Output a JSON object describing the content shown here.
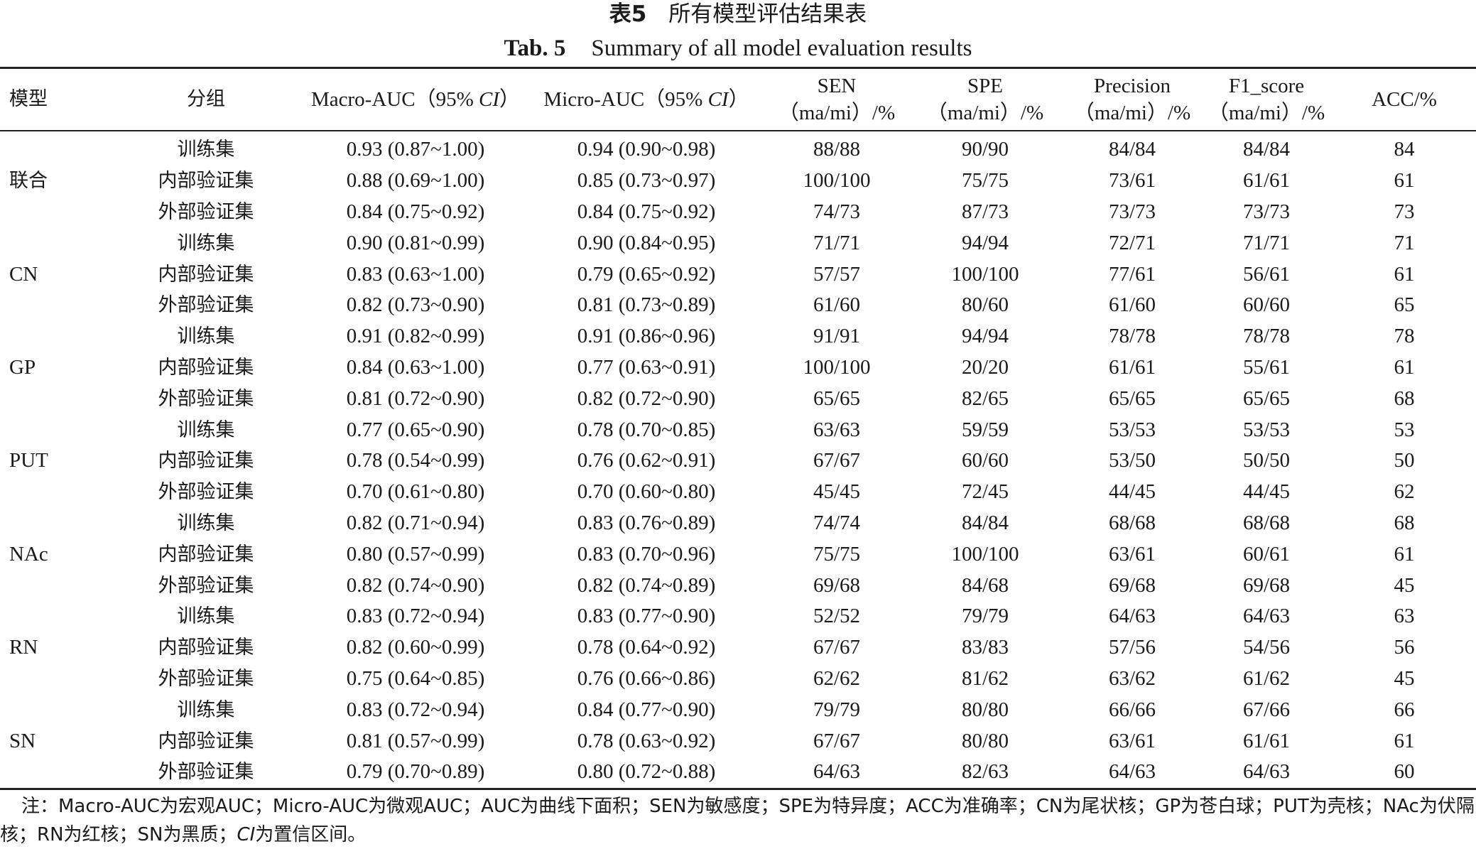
{
  "title": {
    "cn_label": "表5",
    "cn_text": "所有模型评估结果表",
    "en_label": "Tab. 5",
    "en_text": "Summary of all model evaluation results"
  },
  "header": {
    "model": "模型",
    "group": "分组",
    "macro_prefix": "Macro-AUC（95% ",
    "macro_ci": "CI",
    "macro_suffix": "）",
    "micro_prefix": "Micro-AUC（95% ",
    "micro_ci": "CI",
    "micro_suffix": "）",
    "sen": "SEN",
    "spe": "SPE",
    "precision": "Precision",
    "f1": "F1_score",
    "unit": "（ma/mi）/%",
    "acc": "ACC/%"
  },
  "groups": [
    {
      "model": "联合",
      "rows": [
        [
          "训练集",
          "0.93 (0.87~1.00)",
          "0.94 (0.90~0.98)",
          "88/88",
          "90/90",
          "84/84",
          "84/84",
          "84"
        ],
        [
          "内部验证集",
          "0.88 (0.69~1.00)",
          "0.85 (0.73~0.97)",
          "100/100",
          "75/75",
          "73/61",
          "61/61",
          "61"
        ],
        [
          "外部验证集",
          "0.84 (0.75~0.92)",
          "0.84 (0.75~0.92)",
          "74/73",
          "87/73",
          "73/73",
          "73/73",
          "73"
        ]
      ]
    },
    {
      "model": "CN",
      "rows": [
        [
          "训练集",
          "0.90 (0.81~0.99)",
          "0.90 (0.84~0.95)",
          "71/71",
          "94/94",
          "72/71",
          "71/71",
          "71"
        ],
        [
          "内部验证集",
          "0.83 (0.63~1.00)",
          "0.79 (0.65~0.92)",
          "57/57",
          "100/100",
          "77/61",
          "56/61",
          "61"
        ],
        [
          "外部验证集",
          "0.82 (0.73~0.90)",
          "0.81 (0.73~0.89)",
          "61/60",
          "80/60",
          "61/60",
          "60/60",
          "65"
        ]
      ]
    },
    {
      "model": "GP",
      "rows": [
        [
          "训练集",
          "0.91 (0.82~0.99)",
          "0.91 (0.86~0.96)",
          "91/91",
          "94/94",
          "78/78",
          "78/78",
          "78"
        ],
        [
          "内部验证集",
          "0.84 (0.63~1.00)",
          "0.77 (0.63~0.91)",
          "100/100",
          "20/20",
          "61/61",
          "55/61",
          "61"
        ],
        [
          "外部验证集",
          "0.81 (0.72~0.90)",
          "0.82 (0.72~0.90)",
          "65/65",
          "82/65",
          "65/65",
          "65/65",
          "68"
        ]
      ]
    },
    {
      "model": "PUT",
      "rows": [
        [
          "训练集",
          "0.77 (0.65~0.90)",
          "0.78 (0.70~0.85)",
          "63/63",
          "59/59",
          "53/53",
          "53/53",
          "53"
        ],
        [
          "内部验证集",
          "0.78 (0.54~0.99)",
          "0.76 (0.62~0.91)",
          "67/67",
          "60/60",
          "53/50",
          "50/50",
          "50"
        ],
        [
          "外部验证集",
          "0.70 (0.61~0.80)",
          "0.70 (0.60~0.80)",
          "45/45",
          "72/45",
          "44/45",
          "44/45",
          "62"
        ]
      ]
    },
    {
      "model": "NAc",
      "rows": [
        [
          "训练集",
          "0.82 (0.71~0.94)",
          "0.83 (0.76~0.89)",
          "74/74",
          "84/84",
          "68/68",
          "68/68",
          "68"
        ],
        [
          "内部验证集",
          "0.80 (0.57~0.99)",
          "0.83 (0.70~0.96)",
          "75/75",
          "100/100",
          "63/61",
          "60/61",
          "61"
        ],
        [
          "外部验证集",
          "0.82 (0.74~0.90)",
          "0.82 (0.74~0.89)",
          "69/68",
          "84/68",
          "69/68",
          "69/68",
          "45"
        ]
      ]
    },
    {
      "model": "RN",
      "rows": [
        [
          "训练集",
          "0.83 (0.72~0.94)",
          "0.83 (0.77~0.90)",
          "52/52",
          "79/79",
          "64/63",
          "64/63",
          "63"
        ],
        [
          "内部验证集",
          "0.82 (0.60~0.99)",
          "0.78 (0.64~0.92)",
          "67/67",
          "83/83",
          "57/56",
          "54/56",
          "56"
        ],
        [
          "外部验证集",
          "0.75 (0.64~0.85)",
          "0.76 (0.66~0.86)",
          "62/62",
          "81/62",
          "63/62",
          "61/62",
          "45"
        ]
      ]
    },
    {
      "model": "SN",
      "rows": [
        [
          "训练集",
          "0.83 (0.72~0.94)",
          "0.84 (0.77~0.90)",
          "79/79",
          "80/80",
          "66/66",
          "67/66",
          "66"
        ],
        [
          "内部验证集",
          "0.81 (0.57~0.99)",
          "0.78 (0.63~0.92)",
          "67/67",
          "80/80",
          "63/61",
          "61/61",
          "61"
        ],
        [
          "外部验证集",
          "0.79 (0.70~0.89)",
          "0.80 (0.72~0.88)",
          "64/63",
          "82/63",
          "64/63",
          "64/63",
          "60"
        ]
      ]
    }
  ],
  "note": {
    "main": "注：Macro-AUC为宏观AUC；Micro-AUC为微观AUC；AUC为曲线下面积；SEN为敏感度；SPE为特异度；ACC为准确率；CN为尾状核；GP为苍白球；PUT为壳核；NAc为伏隔核；RN为红核；SN为黑质；",
    "ci": "CI",
    "end": "为置信区间。"
  }
}
